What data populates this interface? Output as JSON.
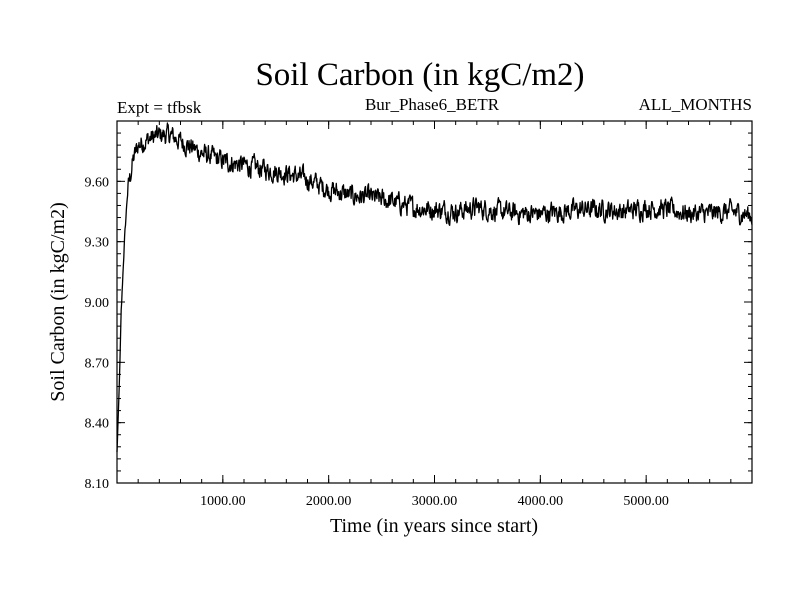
{
  "chart_data": {
    "type": "line",
    "title": "Soil Carbon (in kgC/m2)",
    "subtitle_left": "Expt = tfbsk",
    "subtitle_center": "Bur_Phase6_BETR",
    "subtitle_right": "ALL_MONTHS",
    "xlabel": "Time (in years since start)",
    "ylabel": "Soil Carbon (in kgC/m2)",
    "xlim": [
      0,
      6000
    ],
    "ylim": [
      8.1,
      9.9
    ],
    "xticks": [
      1000,
      2000,
      3000,
      4000,
      5000
    ],
    "xtick_labels": [
      "1000.00",
      "2000.00",
      "3000.00",
      "4000.00",
      "5000.00"
    ],
    "yticks": [
      8.1,
      8.4,
      8.7,
      9.0,
      9.3,
      9.6
    ],
    "ytick_labels": [
      "8.10",
      "8.40",
      "8.70",
      "9.00",
      "9.30",
      "9.60"
    ],
    "series": [
      {
        "name": "Soil Carbon",
        "x": [
          0,
          20,
          40,
          70,
          100,
          150,
          200,
          300,
          400,
          500,
          600,
          700,
          800,
          900,
          1000,
          1200,
          1400,
          1600,
          1800,
          2000,
          2200,
          2400,
          2600,
          2800,
          3000,
          3200,
          3400,
          3600,
          3800,
          4000,
          4200,
          4400,
          4600,
          4800,
          5000,
          5200,
          5400,
          5600,
          5800,
          6000
        ],
        "y": [
          8.25,
          8.55,
          8.95,
          9.3,
          9.55,
          9.7,
          9.78,
          9.81,
          9.83,
          9.83,
          9.8,
          9.77,
          9.74,
          9.72,
          9.7,
          9.68,
          9.66,
          9.64,
          9.61,
          9.56,
          9.53,
          9.52,
          9.5,
          9.47,
          9.46,
          9.45,
          9.47,
          9.45,
          9.44,
          9.44,
          9.45,
          9.46,
          9.46,
          9.45,
          9.47,
          9.46,
          9.44,
          9.44,
          9.45,
          9.43
        ]
      }
    ],
    "noise_amplitude": 0.04,
    "line_color": "#000000"
  }
}
